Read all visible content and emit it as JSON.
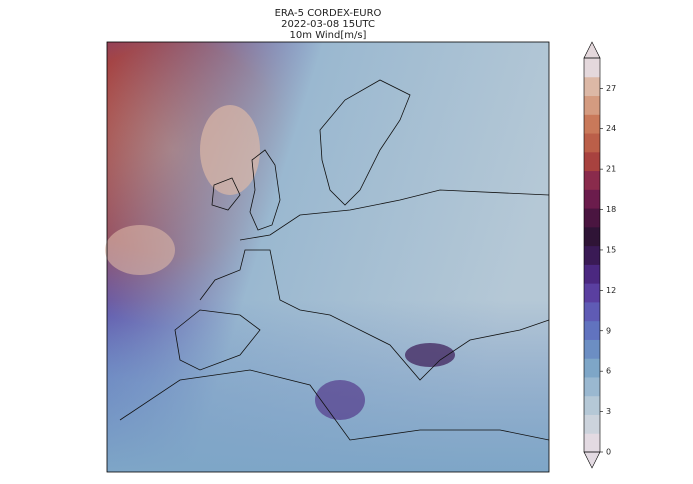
{
  "header": {
    "title": "ERA-5 CORDEX-EURO",
    "subtitle": "2022-03-08 15UTC",
    "variable": "10m Wind[m/s]"
  },
  "colorbar": {
    "lim": [
      0,
      29.25
    ],
    "ticks": [
      0,
      3,
      6,
      9,
      12,
      15,
      18,
      21,
      24,
      27
    ],
    "colors": [
      "#e3dae2",
      "#ccd3dc",
      "#b5c8d6",
      "#9ab8d0",
      "#7ea6c7",
      "#6c8ec3",
      "#6173bf",
      "#5f5bb5",
      "#5a3fa0",
      "#4b2880",
      "#3a1a55",
      "#2f1436",
      "#4a1540",
      "#6b1c4c",
      "#8a2b4c",
      "#a8423f",
      "#bb5f49",
      "#c9795a",
      "#d49b80",
      "#dcb8a6",
      "#e4d8dc"
    ]
  }
}
